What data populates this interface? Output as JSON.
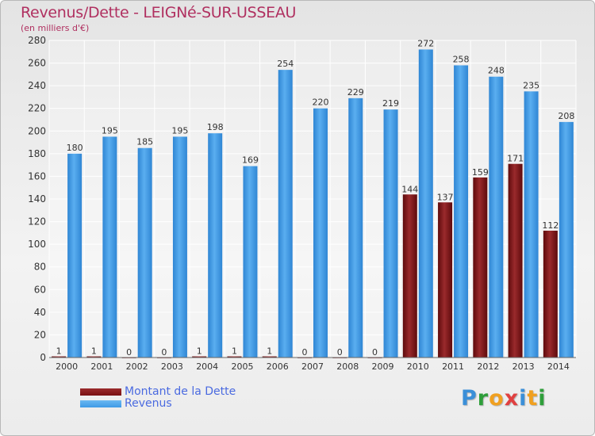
{
  "chart_data": {
    "type": "bar",
    "title": "Revenus/Dette - LEIGNé-SUR-USSEAU",
    "subtitle": "(en milliers d'€)",
    "categories": [
      "2000",
      "2001",
      "2002",
      "2003",
      "2004",
      "2005",
      "2006",
      "2007",
      "2008",
      "2009",
      "2010",
      "2011",
      "2012",
      "2013",
      "2014"
    ],
    "series": [
      {
        "name": "Montant de la Dette",
        "color": "#7a0f12",
        "values": [
          1,
          1,
          0,
          0,
          1,
          1,
          1,
          0,
          0,
          0,
          144,
          137,
          159,
          171,
          112
        ]
      },
      {
        "name": "Revenus",
        "color": "#3f9ae6",
        "values": [
          180,
          195,
          185,
          195,
          198,
          169,
          254,
          220,
          229,
          219,
          272,
          258,
          248,
          235,
          208
        ]
      }
    ],
    "ylim": [
      0,
      280
    ],
    "yticks": [
      0,
      20,
      40,
      60,
      80,
      100,
      120,
      140,
      160,
      180,
      200,
      220,
      240,
      260,
      280
    ],
    "grid": true,
    "legend_position": "bottom-left"
  },
  "logo": {
    "text": "Proxiti"
  }
}
